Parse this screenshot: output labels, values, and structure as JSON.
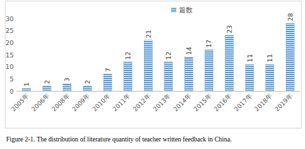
{
  "chart_data": {
    "type": "bar",
    "title": "Figure 2-1. The distribution of literature quantity of teacher written feedback in China.",
    "categories": [
      "2005年",
      "2006年",
      "2008年",
      "2009年",
      "2010年",
      "2011年",
      "2012年",
      "2013年",
      "2014年",
      "2015年",
      "2016年",
      "2017年",
      "2018年",
      "2019年"
    ],
    "series": [
      {
        "name": "篇数",
        "color": "#5b9bd5",
        "values": [
          1,
          2,
          3,
          2,
          7,
          12,
          21,
          12,
          14,
          17,
          23,
          11,
          11,
          28
        ]
      }
    ],
    "ylim": [
      0,
      30
    ],
    "yticks": [
      0,
      5,
      10,
      15,
      20,
      25,
      30
    ],
    "grid": false,
    "legend": "top",
    "data_labels": true
  }
}
